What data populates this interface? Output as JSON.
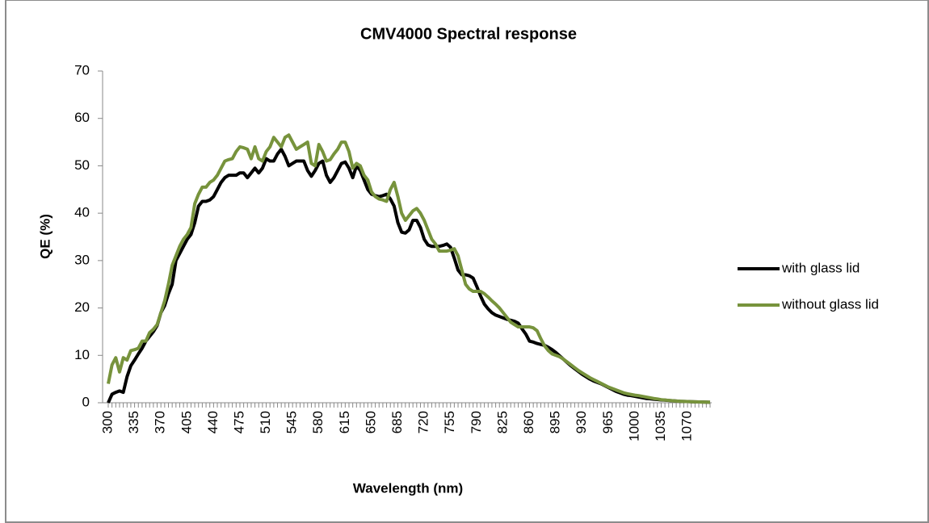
{
  "chart_data": {
    "type": "line",
    "title": "CMV4000 Spectral response",
    "x_label": "Wavelength (nm)",
    "y_label": "QE (%)",
    "categories": [
      300,
      null,
      null,
      null,
      null,
      null,
      null,
      335,
      null,
      null,
      null,
      null,
      null,
      null,
      370,
      null,
      null,
      null,
      null,
      null,
      null,
      405,
      null,
      null,
      null,
      null,
      null,
      null,
      440,
      null,
      null,
      null,
      null,
      null,
      null,
      475,
      null,
      null,
      null,
      null,
      null,
      null,
      510,
      null,
      null,
      null,
      null,
      null,
      null,
      545,
      null,
      null,
      null,
      null,
      null,
      null,
      580,
      null,
      null,
      null,
      null,
      null,
      null,
      615,
      null,
      null,
      null,
      null,
      null,
      null,
      650,
      null,
      null,
      null,
      null,
      null,
      null,
      685,
      null,
      null,
      null,
      null,
      null,
      null,
      720,
      null,
      null,
      null,
      null,
      null,
      null,
      755,
      null,
      null,
      null,
      null,
      null,
      null,
      790,
      null,
      null,
      null,
      null,
      null,
      null,
      825,
      null,
      null,
      null,
      null,
      null,
      null,
      860,
      null,
      null,
      null,
      null,
      null,
      null,
      895,
      null,
      null,
      null,
      null,
      null,
      null,
      930,
      null,
      null,
      null,
      null,
      null,
      null,
      965,
      null,
      null,
      null,
      null,
      null,
      null,
      1000,
      null,
      null,
      null,
      null,
      null,
      null,
      1035,
      null,
      null,
      null,
      null,
      null,
      null,
      1070,
      null,
      null,
      null,
      null,
      null,
      null
    ],
    "series": [
      {
        "name": "with glass lid",
        "color": "#000000",
        "values": [
          0,
          1.8,
          2.2,
          2.5,
          2.2,
          5.5,
          7.8,
          9,
          10.3,
          11.5,
          13,
          14,
          15,
          16.3,
          19,
          20.5,
          23,
          25,
          30,
          31.5,
          33,
          34.5,
          35.5,
          38,
          41.5,
          42.5,
          42.5,
          42.8,
          43.5,
          45,
          46.5,
          47.5,
          48,
          48,
          48,
          48.5,
          48.5,
          47.5,
          48.5,
          49.5,
          48.5,
          49.5,
          51.5,
          51,
          51,
          52.5,
          53.5,
          52,
          50,
          50.5,
          51,
          51,
          51,
          49,
          47.8,
          49,
          50.5,
          51,
          48,
          46.5,
          47.5,
          49,
          50.5,
          50.8,
          49.5,
          47.5,
          50,
          49,
          47,
          45,
          44,
          43.7,
          43.5,
          43.7,
          44,
          43,
          41.5,
          38,
          36,
          35.8,
          36.5,
          38.5,
          38.5,
          37,
          34.5,
          33.3,
          33,
          33,
          33,
          33.2,
          33.5,
          32.8,
          30.5,
          28,
          27,
          27,
          26.8,
          26.3,
          24.5,
          22.5,
          20.8,
          19.8,
          19,
          18.5,
          18.2,
          17.9,
          17.6,
          17.4,
          17.2,
          16.8,
          15.6,
          14.5,
          13,
          12.8,
          12.5,
          12.3,
          12.1,
          11.7,
          11.2,
          10.6,
          9.9,
          9.2,
          8.5,
          7.8,
          7.2,
          6.6,
          6,
          5.5,
          5,
          4.6,
          4.3,
          4,
          3.6,
          3.2,
          2.8,
          2.4,
          2.1,
          1.8,
          1.6,
          1.5,
          1.35,
          1.2,
          1.05,
          0.9,
          0.85,
          0.75,
          0.68,
          0.6,
          0.55,
          0.48,
          0.42,
          0.36,
          0.3,
          0.28,
          0.25,
          0.22,
          0.2,
          0.18,
          0.15,
          0.12,
          0.1
        ]
      },
      {
        "name": "without glass lid",
        "color": "#77933c",
        "values": [
          4,
          8,
          9.5,
          6.5,
          9.5,
          9,
          11,
          11.2,
          11.5,
          13,
          13,
          14.8,
          15.5,
          16.5,
          19,
          21.5,
          25,
          29,
          31,
          33,
          34.5,
          35.5,
          37,
          42,
          44,
          45.5,
          45.5,
          46.5,
          47,
          48,
          49.5,
          51,
          51.3,
          51.5,
          53,
          54,
          53.8,
          53.5,
          51.5,
          54,
          51.5,
          51,
          53,
          54,
          56,
          55,
          54,
          56,
          56.5,
          55,
          53.5,
          54,
          54.5,
          55,
          50.5,
          50,
          54.5,
          53,
          51,
          51.3,
          52.5,
          53.5,
          55,
          55,
          53,
          49.5,
          50.5,
          50,
          48,
          47,
          44.5,
          43.5,
          43,
          42.8,
          42.5,
          45,
          46.5,
          43.5,
          40,
          38.5,
          39.5,
          40.5,
          41,
          40,
          38.5,
          36.5,
          34.5,
          33.5,
          32,
          32,
          32,
          32.2,
          32.5,
          31,
          28,
          25,
          24,
          23.5,
          23.5,
          23.5,
          23,
          22.3,
          21.5,
          20.8,
          20,
          19,
          18,
          17,
          16.5,
          16,
          16,
          16,
          16,
          15.8,
          15.2,
          13.5,
          12,
          11,
          10.3,
          10,
          9.7,
          9.2,
          8.6,
          8,
          7.4,
          6.8,
          6.3,
          5.8,
          5.3,
          4.9,
          4.5,
          4.1,
          3.7,
          3.3,
          3,
          2.7,
          2.4,
          2.1,
          1.9,
          1.75,
          1.6,
          1.5,
          1.35,
          1.2,
          1.05,
          0.9,
          0.8,
          0.65,
          0.58,
          0.5,
          0.43,
          0.37,
          0.32,
          0.28,
          0.25,
          0.22,
          0.2,
          0.17,
          0.14,
          0.12,
          0.1
        ]
      }
    ],
    "ylim": [
      0,
      70
    ],
    "yticks": [
      0,
      10,
      20,
      30,
      40,
      50,
      60,
      70
    ],
    "grid": false,
    "legend": "right"
  }
}
